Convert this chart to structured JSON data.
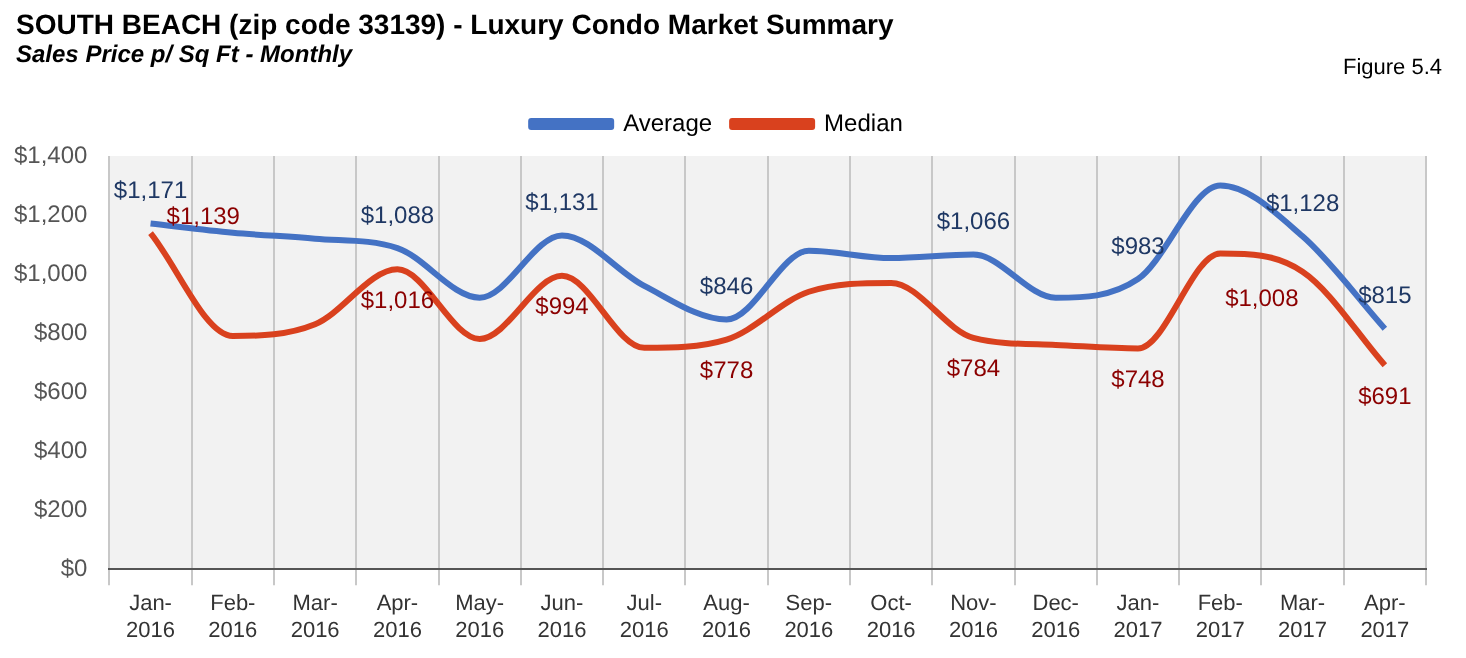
{
  "chart_data": {
    "type": "line",
    "title": "SOUTH BEACH (zip code 33139) - Luxury Condo Market Summary",
    "subtitle": "Sales Price  p/ Sq Ft - Monthly",
    "annotations": [
      "Figure 5.4"
    ],
    "categories": [
      "Jan-2016",
      "Feb-2016",
      "Mar-2016",
      "Apr-2016",
      "May-2016",
      "Jun-2016",
      "Jul-2016",
      "Aug-2016",
      "Sep-2016",
      "Oct-2016",
      "Nov-2016",
      "Dec-2016",
      "Jan-2017",
      "Feb-2017",
      "Mar-2017",
      "Apr-2017"
    ],
    "series": [
      {
        "name": "Average",
        "color": "#4472c4",
        "values": [
          1171,
          1140,
          1120,
          1088,
          920,
          1131,
          960,
          846,
          1079,
          1054,
          1066,
          920,
          983,
          1300,
          1128,
          815
        ],
        "value_labels": [
          "$1,171",
          null,
          null,
          "$1,088",
          null,
          "$1,131",
          null,
          "$846",
          null,
          null,
          "$1,066",
          null,
          "$983",
          null,
          "$1,128",
          "$815"
        ]
      },
      {
        "name": "Median",
        "color": "#d9411e",
        "values": [
          1139,
          790,
          830,
          1016,
          780,
          994,
          750,
          778,
          940,
          970,
          784,
          760,
          748,
          1070,
          1008,
          691
        ],
        "value_labels": [
          "$1,139",
          null,
          null,
          "$1,016",
          null,
          "$994",
          null,
          "$778",
          null,
          null,
          "$784",
          null,
          "$748",
          null,
          "$1,008",
          "$691"
        ]
      }
    ],
    "ylim": [
      0,
      1400
    ],
    "yticks": [
      {
        "value": 0,
        "label": "$0"
      },
      {
        "value": 200,
        "label": "$200"
      },
      {
        "value": 400,
        "label": "$400"
      },
      {
        "value": 600,
        "label": "$600"
      },
      {
        "value": 800,
        "label": "$800"
      },
      {
        "value": 1000,
        "label": "$1,000"
      },
      {
        "value": 1200,
        "label": "$1,200"
      },
      {
        "value": 1400,
        "label": "$1,400"
      }
    ],
    "grid": "x",
    "legend": "top",
    "marker": "none",
    "line_style": "solid"
  }
}
